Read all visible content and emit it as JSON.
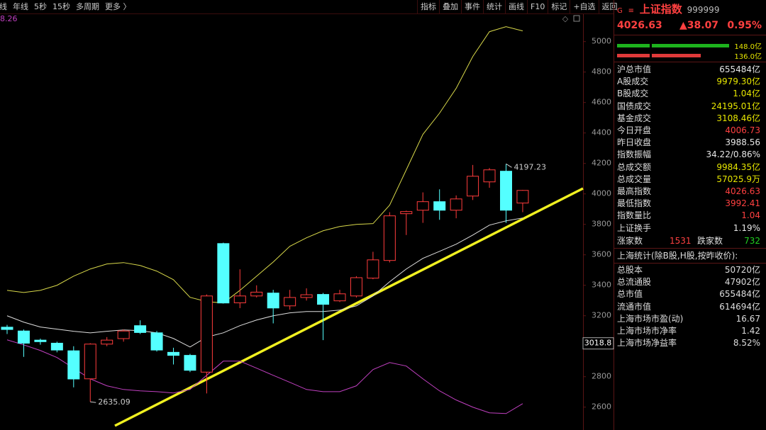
{
  "toolbar_left": [
    "日线",
    "年线",
    "5秒",
    "15秒",
    "多周期",
    "更多 〉"
  ],
  "toolbar_right": [
    "指标",
    "叠加",
    "事件",
    "统计",
    "画线",
    "F10",
    "标记",
    "+自选",
    "返回"
  ],
  "chart_data": {
    "type": "candlestick",
    "indicator_value": "8.26",
    "categories": [
      null,
      null,
      null,
      null,
      null,
      null,
      null,
      null,
      null,
      null,
      null,
      null,
      null,
      null,
      null,
      null,
      null,
      null,
      null,
      null,
      null,
      null,
      null,
      null,
      null,
      null,
      null,
      null,
      null,
      null,
      null,
      null
    ],
    "open": [
      3125,
      3100,
      3040,
      3020,
      2970,
      2786,
      3014,
      3050,
      3135,
      3088,
      2960,
      2940,
      2830,
      3674,
      3285,
      3330,
      3349,
      3265,
      3320,
      3340,
      3298,
      3330,
      3447,
      3563,
      3870,
      3893,
      3949,
      3893,
      3986,
      4079,
      4149,
      3940
    ],
    "high": [
      3140,
      3110,
      3050,
      3030,
      3000,
      3020,
      3060,
      3110,
      3170,
      3100,
      2990,
      2950,
      3340,
      3680,
      3505,
      3400,
      3370,
      3370,
      3380,
      3350,
      3370,
      3460,
      3620,
      3880,
      3890,
      4010,
      4030,
      3990,
      4190,
      4170,
      4197.23,
      4026
    ],
    "low": [
      3080,
      2930,
      3010,
      2960,
      2730,
      2635.09,
      3000,
      3030,
      3080,
      2965,
      2880,
      2830,
      2690,
      3280,
      3250,
      3320,
      3150,
      3240,
      3300,
      3040,
      3290,
      3320,
      3440,
      3550,
      3730,
      3810,
      3830,
      3840,
      3960,
      4040,
      3810,
      3880
    ],
    "close": [
      3110,
      3020,
      3030,
      2975,
      2785,
      3014,
      3040,
      3100,
      3090,
      2975,
      2940,
      2842,
      3330,
      3284,
      3330,
      3355,
      3251,
      3320,
      3338,
      3275,
      3344,
      3450,
      3567,
      3856,
      3884,
      3949,
      3893,
      3967,
      4116,
      4158,
      3893,
      4023
    ],
    "up_color": "#ff3c3c",
    "down_color": "#54ffff",
    "overlays": [
      {
        "color": "#d8d84a",
        "values": [
          3367,
          3353,
          3367,
          3400,
          3460,
          3507,
          3540,
          3549,
          3530,
          3493,
          3437,
          3321,
          3293,
          3284,
          3367,
          3460,
          3553,
          3656,
          3712,
          3758,
          3786,
          3800,
          3805,
          3926,
          4158,
          4391,
          4530,
          4693,
          4902,
          5065,
          5098,
          5070
        ]
      },
      {
        "color": "#dddddd",
        "values": [
          3200,
          3158,
          3126,
          3112,
          3098,
          3088,
          3098,
          3107,
          3102,
          3088,
          3051,
          2995,
          3060,
          3088,
          3135,
          3172,
          3200,
          3219,
          3228,
          3228,
          3237,
          3265,
          3330,
          3423,
          3507,
          3577,
          3623,
          3670,
          3730,
          3795,
          3823,
          3842
        ]
      },
      {
        "color": "#c040c0",
        "values": [
          3042,
          3009,
          2972,
          2926,
          2856,
          2786,
          2740,
          2716,
          2707,
          2702,
          2693,
          2716,
          2809,
          2902,
          2902,
          2856,
          2809,
          2763,
          2716,
          2702,
          2702,
          2740,
          2847,
          2893,
          2870,
          2786,
          2707,
          2647,
          2600,
          2563,
          2558,
          2623
        ]
      }
    ],
    "annotations": [
      "4197.23",
      "2635.09"
    ],
    "cursor": 3018.8,
    "ylim": [
      2450,
      5180
    ],
    "yticks": [
      2600,
      2800,
      3000,
      3200,
      3400,
      3600,
      3800,
      4000,
      4200,
      4400,
      4600,
      4800,
      5000
    ]
  },
  "panel": {
    "logo": "G",
    "menu": "≡",
    "name": "上证指数",
    "code": "999999",
    "price": "4026.63",
    "change": "▲38.07",
    "pct": "0.95%",
    "bars": [
      "148.0亿",
      "136.0亿"
    ],
    "rows": [
      {
        "label": "沪总市值",
        "value": "655484亿",
        "color": "#e6e6e6"
      },
      {
        "label": "A股成交",
        "value": "9979.30亿",
        "color": "#e6e600"
      },
      {
        "label": "B股成交",
        "value": "1.04亿",
        "color": "#e6e600"
      },
      {
        "label": "国债成交",
        "value": "24195.01亿",
        "color": "#e6e600"
      },
      {
        "label": "基金成交",
        "value": "3108.46亿",
        "color": "#e6e600"
      },
      {
        "label": "今日开盘",
        "value": "4006.73",
        "color": "#ff4040"
      },
      {
        "label": "昨日收盘",
        "value": "3988.56",
        "color": "#e6e6e6"
      },
      {
        "label": "指数振幅",
        "value": "34.22/0.86%",
        "color": "#e6e6e6"
      },
      {
        "label": "总成交额",
        "value": "9984.35亿",
        "color": "#e6e600"
      },
      {
        "label": "总成交量",
        "value": "57025.9万",
        "color": "#e6e600"
      },
      {
        "label": "最高指数",
        "value": "4026.63",
        "color": "#ff4040"
      },
      {
        "label": "最低指数",
        "value": "3992.41",
        "color": "#ff4040"
      },
      {
        "label": "指数量比",
        "value": "1.04",
        "color": "#ff4040"
      },
      {
        "label": "上证换手",
        "value": "1.19%",
        "color": "#e6e6e6"
      }
    ],
    "breadth": {
      "up_label": "涨家数",
      "up": "1531",
      "down_label": "跌家数",
      "down": "732"
    },
    "section": "上海统计(除B股,H股,按昨收价):",
    "stats": [
      {
        "label": "总股本",
        "value": "50720亿"
      },
      {
        "label": "总流通股",
        "value": "47902亿"
      },
      {
        "label": "总市值",
        "value": "655484亿"
      },
      {
        "label": "流通市值",
        "value": "614694亿"
      },
      {
        "label": "上海市场市盈(动)",
        "value": "16.67"
      },
      {
        "label": "上海市场市净率",
        "value": "1.42"
      },
      {
        "label": "上海市场净益率",
        "value": "8.52%"
      }
    ]
  }
}
